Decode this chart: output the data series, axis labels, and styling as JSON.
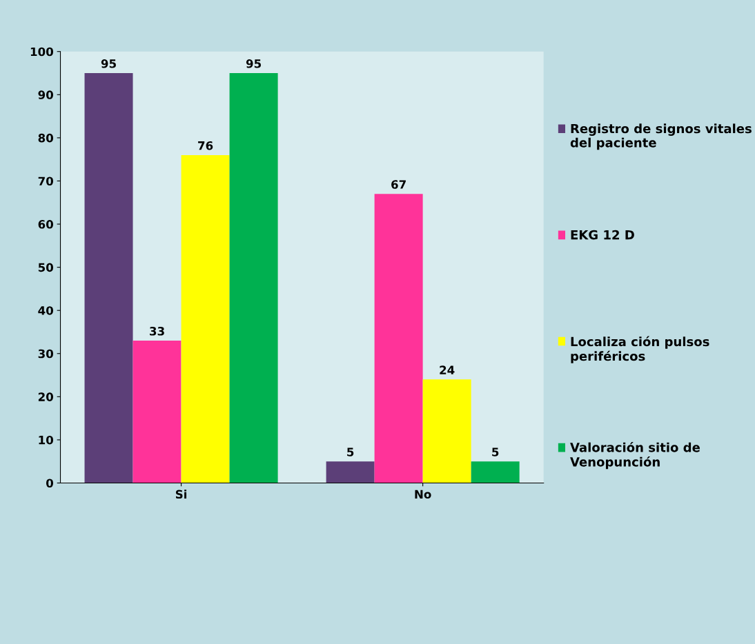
{
  "chart_data": {
    "type": "bar",
    "categories": [
      "Si",
      "No"
    ],
    "series": [
      {
        "name": "Registro de signos vitales del paciente",
        "color": "#5c3f78",
        "values": [
          95,
          5
        ]
      },
      {
        "name": "EKG 12 D",
        "color": "#ff3399",
        "values": [
          33,
          67
        ]
      },
      {
        "name": "Localiza ción pulsos periféricos",
        "color": "#ffff00",
        "values": [
          76,
          24
        ]
      },
      {
        "name": "Valoración sitio de Venopunción",
        "color": "#00b050",
        "values": [
          95,
          5
        ]
      }
    ],
    "ylim": [
      0,
      100
    ],
    "yticks": [
      0,
      10,
      20,
      30,
      40,
      50,
      60,
      70,
      80,
      90,
      100
    ],
    "data_labels": true,
    "legend": "right",
    "grid": false
  }
}
